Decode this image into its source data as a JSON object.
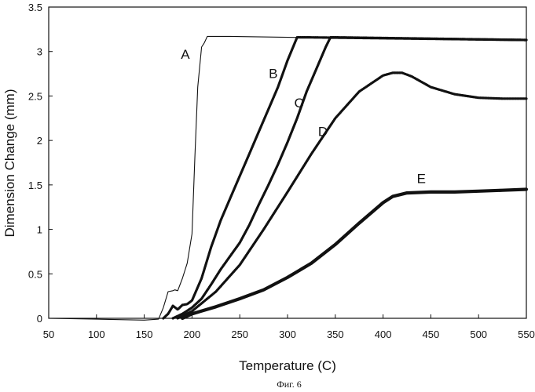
{
  "chart_data": {
    "type": "line",
    "title": "",
    "xlabel": "Temperature (C)",
    "ylabel": "Dimension Change (mm)",
    "caption": "Фиг. 6",
    "xlim": [
      50,
      550
    ],
    "ylim": [
      0,
      3.5
    ],
    "xticks": [
      "50",
      "100",
      "150",
      "200",
      "250",
      "300",
      "350",
      "400",
      "450",
      "500",
      "550"
    ],
    "yticks": [
      "0",
      "0.5",
      "1",
      "1.5",
      "2",
      "2.5",
      "3",
      "3.5"
    ],
    "grid": false,
    "legend": "none",
    "series": [
      {
        "name": "A",
        "color": "#111111",
        "x": [
          50,
          100,
          150,
          165,
          170,
          175,
          180,
          182,
          185,
          190,
          195,
          200,
          203,
          206,
          210,
          213,
          216,
          240,
          300,
          550
        ],
        "y": [
          0.0,
          -0.01,
          -0.02,
          -0.01,
          0.12,
          0.3,
          0.31,
          0.32,
          0.31,
          0.45,
          0.62,
          0.95,
          1.8,
          2.6,
          3.05,
          3.1,
          3.17,
          3.17,
          3.16,
          3.13
        ]
      },
      {
        "name": "B",
        "color": "#111111",
        "x": [
          170,
          175,
          180,
          185,
          190,
          195,
          200,
          210,
          220,
          230,
          240,
          250,
          260,
          270,
          280,
          290,
          300,
          310,
          320,
          550
        ],
        "y": [
          0.0,
          0.05,
          0.14,
          0.1,
          0.15,
          0.16,
          0.2,
          0.45,
          0.8,
          1.1,
          1.35,
          1.6,
          1.85,
          2.1,
          2.35,
          2.6,
          2.9,
          3.16,
          3.16,
          3.13
        ]
      },
      {
        "name": "C",
        "color": "#111111",
        "x": [
          180,
          190,
          200,
          210,
          220,
          230,
          240,
          250,
          260,
          270,
          280,
          290,
          300,
          310,
          320,
          330,
          340,
          345,
          350,
          550
        ],
        "y": [
          0.0,
          0.05,
          0.12,
          0.22,
          0.38,
          0.55,
          0.7,
          0.85,
          1.05,
          1.28,
          1.5,
          1.73,
          1.98,
          2.25,
          2.55,
          2.8,
          3.05,
          3.16,
          3.16,
          3.13
        ]
      },
      {
        "name": "D",
        "color": "#111111",
        "x": [
          185,
          200,
          225,
          250,
          275,
          300,
          325,
          350,
          375,
          400,
          410,
          420,
          430,
          450,
          475,
          500,
          525,
          550
        ],
        "y": [
          0.0,
          0.08,
          0.3,
          0.6,
          1.0,
          1.42,
          1.85,
          2.25,
          2.55,
          2.73,
          2.76,
          2.76,
          2.72,
          2.6,
          2.52,
          2.48,
          2.47,
          2.47
        ]
      },
      {
        "name": "E",
        "color": "#111111",
        "x": [
          190,
          200,
          225,
          250,
          275,
          300,
          325,
          350,
          375,
          400,
          410,
          425,
          450,
          475,
          500,
          525,
          550
        ],
        "y": [
          0.0,
          0.05,
          0.13,
          0.22,
          0.32,
          0.46,
          0.62,
          0.83,
          1.07,
          1.3,
          1.37,
          1.41,
          1.42,
          1.42,
          1.43,
          1.44,
          1.45
        ]
      }
    ],
    "labels": [
      {
        "text": "A",
        "x": 193,
        "y": 2.92
      },
      {
        "text": "B",
        "x": 285,
        "y": 2.7
      },
      {
        "text": "C",
        "x": 312,
        "y": 2.37
      },
      {
        "text": "D",
        "x": 337,
        "y": 2.05
      },
      {
        "text": "E",
        "x": 440,
        "y": 1.52
      }
    ]
  }
}
